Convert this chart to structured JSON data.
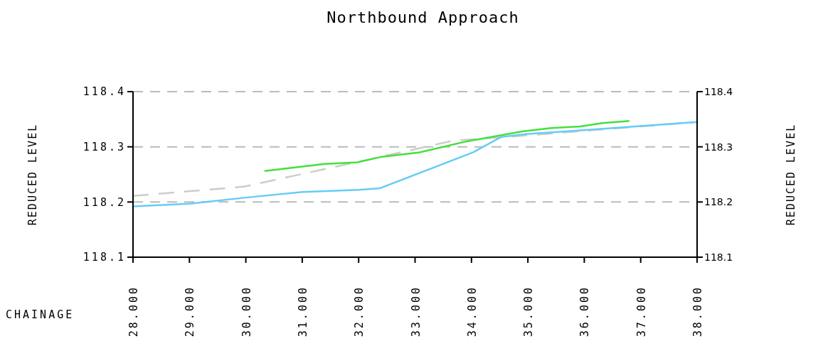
{
  "chart_data": {
    "type": "line",
    "title": "Northbound Approach",
    "xlabel": "CHAINAGE",
    "ylabel": "REDUCED LEVEL",
    "y2label": "REDUCED LEVEL",
    "xlim": [
      28,
      38
    ],
    "xticks": [
      {
        "value": 28,
        "label": "28.000"
      },
      {
        "value": 29,
        "label": "29.000"
      },
      {
        "value": 30,
        "label": "30.000"
      },
      {
        "value": 31,
        "label": "31.000"
      },
      {
        "value": 32,
        "label": "32.000"
      },
      {
        "value": 33,
        "label": "33.000"
      },
      {
        "value": 34,
        "label": "34.000"
      },
      {
        "value": 35,
        "label": "35.000"
      },
      {
        "value": 36,
        "label": "36.000"
      },
      {
        "value": 37,
        "label": "37.000"
      },
      {
        "value": 38,
        "label": "38.000"
      }
    ],
    "ylim": [
      118.1,
      118.4
    ],
    "yticks": [
      118.1,
      118.2,
      118.3,
      118.4
    ],
    "y2lim": [
      118.1,
      118.4
    ],
    "y2ticks": [
      118.1,
      118.2,
      118.3,
      118.4
    ],
    "grid": "y",
    "marker": "none",
    "series": [
      {
        "color": "#cccccc",
        "line_style": "dashed",
        "x": [
          28,
          29.98,
          32.44,
          33.67,
          34.64,
          38
        ],
        "values": [
          118.211,
          118.228,
          118.283,
          118.311,
          118.318,
          118.345
        ]
      },
      {
        "color": "#66ccf5",
        "line_style": "solid",
        "x": [
          28,
          29,
          30,
          31,
          32,
          32.38,
          34.03,
          34.53,
          34.96,
          35.98,
          38
        ],
        "values": [
          118.192,
          118.197,
          118.208,
          118.218,
          118.222,
          118.225,
          118.29,
          118.318,
          118.323,
          118.33,
          118.345
        ]
      },
      {
        "color": "#44e03c",
        "line_style": "solid",
        "x": [
          30.33,
          31.4,
          31.98,
          32.41,
          33.08,
          33.92,
          34.9,
          35.41,
          35.93,
          36.32,
          36.8
        ],
        "values": [
          118.256,
          118.269,
          118.272,
          118.282,
          118.29,
          118.31,
          118.328,
          118.334,
          118.337,
          118.343,
          118.347
        ]
      }
    ]
  }
}
